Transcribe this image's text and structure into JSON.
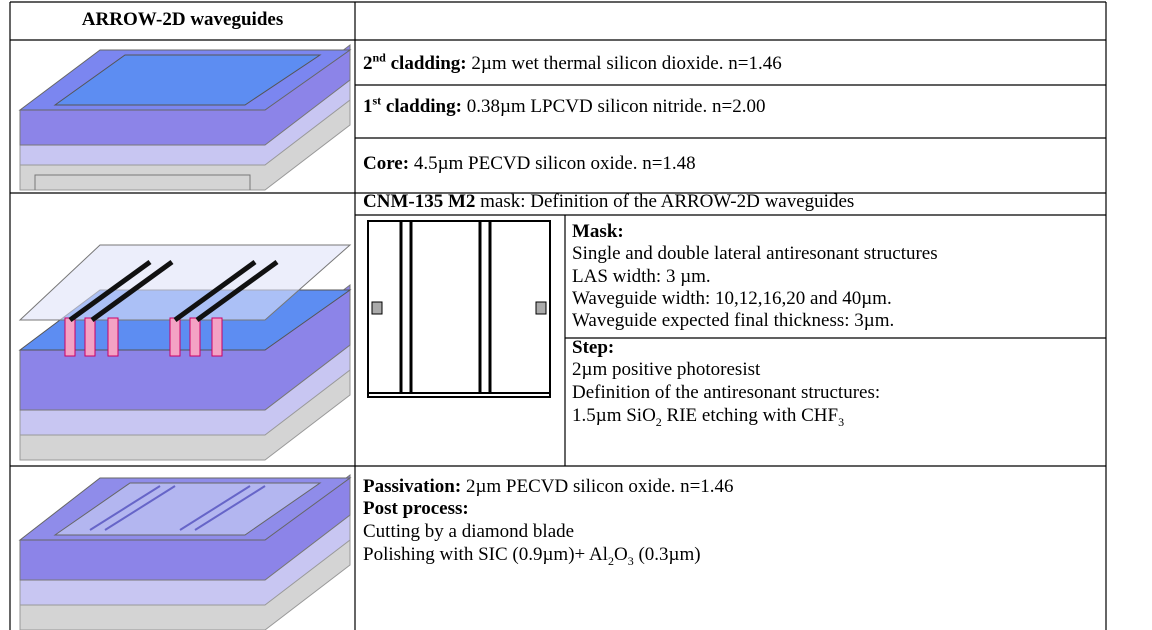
{
  "table": {
    "header": "ARROW-2D waveguides",
    "layers": [
      {
        "name_num": "2",
        "name_sup": "nd",
        "name_rest": " cladding:",
        "desc": " 2µm wet thermal silicon dioxide. n=1.46"
      },
      {
        "name_num": "1",
        "name_sup": "st",
        "name_rest": " cladding:",
        "desc": " 0.38µm LPCVD silicon nitride. n=2.00"
      },
      {
        "name": "Core:",
        "desc": " 4.5µm PECVD silicon oxide. n=1.48"
      }
    ],
    "mask": {
      "name": "CNM-135 M2",
      "title_rest": " mask: Definition of the ARROW-2D waveguides",
      "mask_label": "Mask:",
      "mask_lines": [
        "Single and double lateral antiresonant structures",
        "LAS width: 3 µm.",
        "Waveguide width: 10,12,16,20 and 40µm.",
        "Waveguide expected final thickness: 3µm."
      ],
      "step_label": "Step:",
      "step_lines": [
        "2µm positive photoresist",
        "Definition of the antiresonant structures:"
      ],
      "etch": [
        "1.5µm SiO",
        "2",
        " RIE etching with CHF",
        "3"
      ]
    },
    "final": {
      "passivation_label": "Passivation:",
      "passivation": " 2µm PECVD silicon oxide. n=1.46",
      "post_label": "Post process:",
      "post_lines": [
        "Cutting by a diamond blade"
      ],
      "polish": [
        "Polishing with SIC (0.9µm)+ Al",
        "2",
        "O",
        "3",
        " (0.3µm)"
      ]
    }
  }
}
